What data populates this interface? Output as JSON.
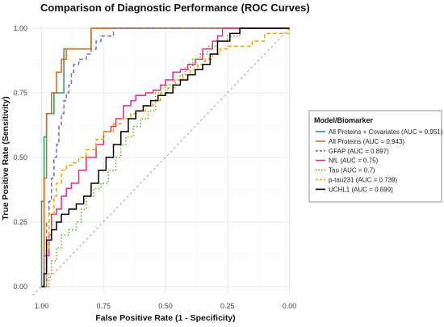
{
  "chart_data": {
    "type": "line",
    "title": "Comparison of Diagnostic Performance (ROC Curves)",
    "xlabel": "False Positive Rate (1 - Specificity)",
    "ylabel": "True Positive Rate (Sensitivity)",
    "x_reversed": true,
    "xlim": [
      1.0,
      0.0
    ],
    "ylim": [
      0.0,
      1.0
    ],
    "x_ticks": [
      1.0,
      0.75,
      0.5,
      0.25,
      0.0
    ],
    "x_tick_labels": [
      "1.00",
      "0.75",
      "0.50",
      "0.25",
      "0.00"
    ],
    "y_ticks": [
      0.0,
      0.25,
      0.5,
      0.75,
      1.0
    ],
    "y_tick_labels": [
      "0.00",
      "0.25",
      "0.50",
      "0.75",
      "1.00"
    ],
    "grid": true,
    "reference_line": {
      "from": [
        1.0,
        0.0
      ],
      "to": [
        0.0,
        1.0
      ],
      "color": "#9a9a9a",
      "dash": "dashed"
    },
    "legend": {
      "title": "Model/Biomarker",
      "position": "right"
    },
    "series": [
      {
        "name": "All Proteins + Covariates (AUC = 0.951)",
        "color": "#1b9e77",
        "dash": "solid",
        "x": [
          1.0,
          1.0,
          0.99,
          0.99,
          0.98,
          0.98,
          0.95,
          0.95,
          0.91,
          0.91,
          0.86,
          0.86,
          0.8,
          0.8,
          0.7,
          0.7,
          0.0
        ],
        "y": [
          0.0,
          0.33,
          0.33,
          0.58,
          0.58,
          0.67,
          0.67,
          0.75,
          0.75,
          0.92,
          0.92,
          0.92,
          0.92,
          1.0,
          1.0,
          1.0,
          1.0
        ]
      },
      {
        "name": "All Proteins (AUC = 0.943)",
        "color": "#e6620d",
        "dash": "solid",
        "x": [
          1.0,
          0.99,
          0.99,
          0.98,
          0.98,
          0.96,
          0.96,
          0.94,
          0.94,
          0.92,
          0.92,
          0.9,
          0.9,
          0.88,
          0.88,
          0.8,
          0.8,
          0.7,
          0.7,
          0.0
        ],
        "y": [
          0.0,
          0.0,
          0.42,
          0.42,
          0.67,
          0.67,
          0.75,
          0.75,
          0.83,
          0.83,
          0.88,
          0.88,
          0.92,
          0.92,
          0.92,
          0.92,
          1.0,
          1.0,
          1.0,
          1.0
        ]
      },
      {
        "name": "GFAP (AUC = 0.897)",
        "color": "#7570b3",
        "dash": "dashed",
        "x": [
          1.0,
          0.99,
          0.98,
          0.97,
          0.96,
          0.95,
          0.94,
          0.93,
          0.92,
          0.91,
          0.9,
          0.89,
          0.88,
          0.87,
          0.85,
          0.82,
          0.8,
          0.78,
          0.76,
          0.73,
          0.71,
          0.7,
          0.6,
          0.4,
          0.2,
          0.0
        ],
        "y": [
          0.0,
          0.12,
          0.25,
          0.33,
          0.42,
          0.5,
          0.55,
          0.62,
          0.67,
          0.72,
          0.75,
          0.78,
          0.83,
          0.86,
          0.88,
          0.9,
          0.92,
          0.95,
          0.97,
          0.97,
          1.0,
          1.0,
          1.0,
          1.0,
          1.0,
          1.0
        ]
      },
      {
        "name": "NfL (AUC = 0.75)",
        "color": "#e7298a",
        "dash": "solid",
        "x": [
          1.0,
          0.98,
          0.97,
          0.96,
          0.94,
          0.92,
          0.9,
          0.88,
          0.85,
          0.82,
          0.78,
          0.75,
          0.72,
          0.7,
          0.67,
          0.64,
          0.62,
          0.58,
          0.55,
          0.52,
          0.5,
          0.47,
          0.44,
          0.41,
          0.38,
          0.35,
          0.31,
          0.29,
          0.27,
          0.0
        ],
        "y": [
          0.0,
          0.12,
          0.2,
          0.28,
          0.3,
          0.35,
          0.38,
          0.4,
          0.45,
          0.5,
          0.55,
          0.6,
          0.62,
          0.65,
          0.7,
          0.72,
          0.74,
          0.75,
          0.76,
          0.78,
          0.8,
          0.83,
          0.84,
          0.86,
          0.88,
          0.92,
          0.95,
          0.97,
          1.0,
          1.0
        ]
      },
      {
        "name": "Tau (AUC = 0.7)",
        "color": "#66a61e",
        "dash": "dotted",
        "x": [
          1.0,
          0.98,
          0.97,
          0.96,
          0.94,
          0.92,
          0.89,
          0.86,
          0.84,
          0.82,
          0.79,
          0.76,
          0.73,
          0.7,
          0.68,
          0.66,
          0.63,
          0.6,
          0.57,
          0.54,
          0.5,
          0.47,
          0.44,
          0.42,
          0.39,
          0.36,
          0.33,
          0.29,
          0.25,
          0.2,
          0.0
        ],
        "y": [
          0.0,
          0.0,
          0.05,
          0.1,
          0.15,
          0.2,
          0.22,
          0.25,
          0.3,
          0.35,
          0.38,
          0.4,
          0.45,
          0.5,
          0.55,
          0.58,
          0.62,
          0.65,
          0.68,
          0.75,
          0.78,
          0.8,
          0.82,
          0.85,
          0.88,
          0.9,
          0.93,
          0.95,
          0.97,
          1.0,
          1.0
        ]
      },
      {
        "name": "p-tau231 (AUC = 0.739)",
        "color": "#e6ab02",
        "dash": "dashed",
        "x": [
          1.0,
          0.98,
          0.97,
          0.95,
          0.94,
          0.92,
          0.9,
          0.87,
          0.85,
          0.82,
          0.78,
          0.75,
          0.71,
          0.68,
          0.64,
          0.61,
          0.58,
          0.55,
          0.52,
          0.49,
          0.46,
          0.43,
          0.4,
          0.37,
          0.34,
          0.31,
          0.28,
          0.25,
          0.15,
          0.1,
          0.0
        ],
        "y": [
          0.0,
          0.15,
          0.28,
          0.35,
          0.4,
          0.45,
          0.47,
          0.48,
          0.5,
          0.53,
          0.57,
          0.6,
          0.63,
          0.65,
          0.67,
          0.68,
          0.7,
          0.72,
          0.75,
          0.77,
          0.8,
          0.82,
          0.84,
          0.86,
          0.88,
          0.9,
          0.92,
          0.93,
          0.95,
          0.98,
          1.0
        ]
      },
      {
        "name": "UCHL1 (AUC = 0.699)",
        "color": "#000000",
        "dash": "solid",
        "x": [
          1.0,
          0.99,
          0.98,
          0.96,
          0.94,
          0.92,
          0.89,
          0.86,
          0.83,
          0.8,
          0.77,
          0.74,
          0.71,
          0.68,
          0.65,
          0.62,
          0.59,
          0.56,
          0.53,
          0.5,
          0.47,
          0.44,
          0.41,
          0.38,
          0.35,
          0.32,
          0.29,
          0.24,
          0.2,
          0.15,
          0.0
        ],
        "y": [
          0.0,
          0.05,
          0.18,
          0.22,
          0.25,
          0.28,
          0.3,
          0.32,
          0.35,
          0.4,
          0.45,
          0.5,
          0.55,
          0.6,
          0.65,
          0.68,
          0.7,
          0.72,
          0.74,
          0.75,
          0.78,
          0.8,
          0.82,
          0.84,
          0.86,
          0.9,
          0.95,
          0.98,
          1.0,
          1.0,
          1.0
        ]
      }
    ]
  }
}
